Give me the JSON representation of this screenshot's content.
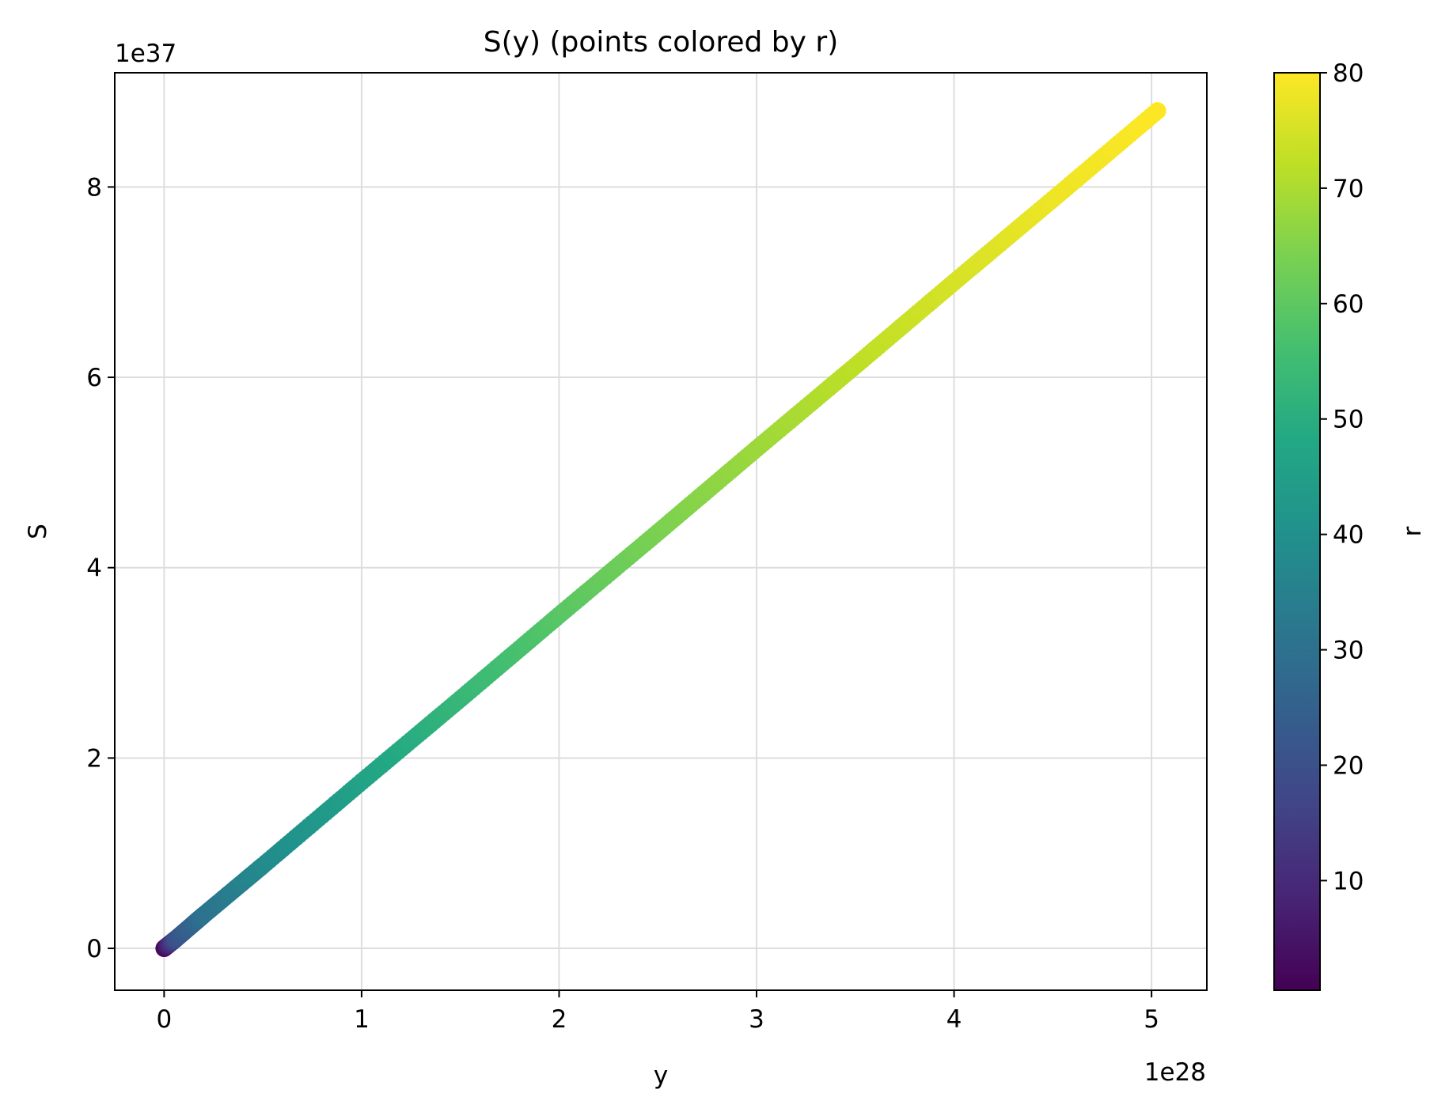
{
  "chart_data": {
    "type": "scatter",
    "title": "S(y) (points colored by r)",
    "xlabel": "y",
    "ylabel": "S",
    "x_offset_label": "1e28",
    "y_offset_label": "1e37",
    "xlim": [
      -0.25,
      5.28
    ],
    "ylim": [
      -0.44,
      9.2
    ],
    "x_ticks": [
      "0",
      "1",
      "2",
      "3",
      "4",
      "5"
    ],
    "y_ticks": [
      "0",
      "2",
      "4",
      "6",
      "8"
    ],
    "grid": true,
    "colorbar": {
      "label": "r",
      "range": [
        0.5,
        80
      ],
      "ticks": [
        "10",
        "20",
        "30",
        "40",
        "50",
        "60",
        "70",
        "80"
      ],
      "colormap": "viridis"
    },
    "series": [
      {
        "points": [
          {
            "x": 0.0,
            "y": 0.0,
            "r": 1
          },
          {
            "x": 0.06,
            "y": 0.1,
            "r": 20
          },
          {
            "x": 0.2,
            "y": 0.35,
            "r": 30
          },
          {
            "x": 0.5,
            "y": 0.87,
            "r": 38
          },
          {
            "x": 1.0,
            "y": 1.75,
            "r": 46
          },
          {
            "x": 1.5,
            "y": 2.62,
            "r": 53
          },
          {
            "x": 2.0,
            "y": 3.5,
            "r": 59
          },
          {
            "x": 2.5,
            "y": 4.37,
            "r": 64
          },
          {
            "x": 3.0,
            "y": 5.25,
            "r": 68
          },
          {
            "x": 3.5,
            "y": 6.12,
            "r": 72
          },
          {
            "x": 4.0,
            "y": 7.0,
            "r": 75
          },
          {
            "x": 4.5,
            "y": 7.87,
            "r": 78
          },
          {
            "x": 5.03,
            "y": 8.8,
            "r": 80
          }
        ]
      }
    ]
  }
}
